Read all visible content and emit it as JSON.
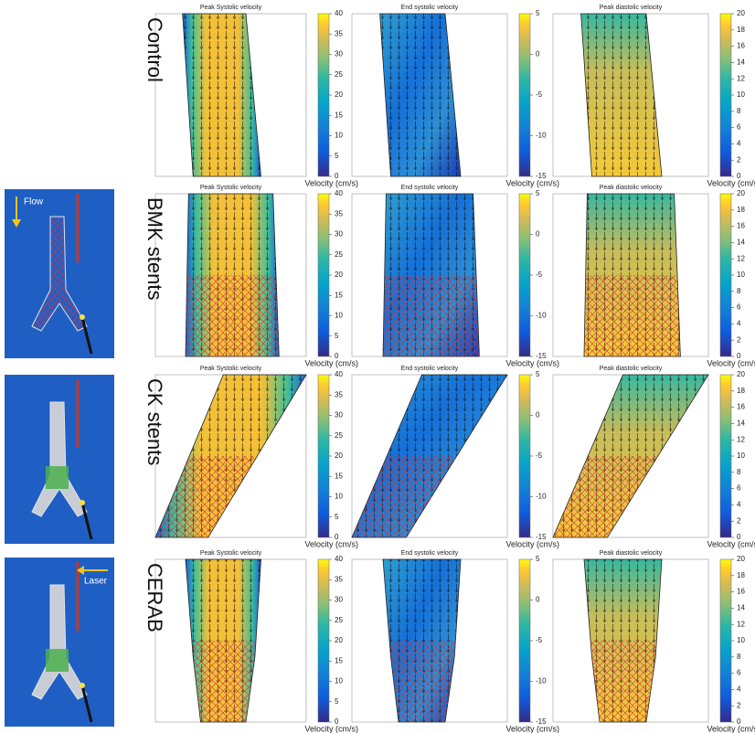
{
  "rows": [
    {
      "label": "Control",
      "photo": false,
      "panels": [
        {
          "title": "Peak Systolic velocity",
          "colorbar": {
            "lim": [
              0,
              40
            ],
            "ticks": [
              0,
              5,
              10,
              15,
              20,
              25,
              30,
              35,
              40
            ],
            "label": "Velocity (cm/s)"
          }
        },
        {
          "title": "End systolic velocity",
          "colorbar": {
            "lim": [
              -15,
              5
            ],
            "ticks": [
              -15,
              -10,
              -5,
              0,
              5
            ],
            "label": "Velocity (cm/s)"
          }
        },
        {
          "title": "Peak diastolic velocity",
          "colorbar": {
            "lim": [
              0,
              20
            ],
            "ticks": [
              0,
              2,
              4,
              6,
              8,
              10,
              12,
              14,
              16,
              18,
              20
            ],
            "label": "Velocity (cm/s)"
          }
        }
      ]
    },
    {
      "label": "BMK stents",
      "photo": true,
      "photo_label": "Flow",
      "panels": [
        {
          "title": "Peak Systolic velocity",
          "colorbar": {
            "lim": [
              0,
              40
            ],
            "ticks": [
              0,
              5,
              10,
              15,
              20,
              25,
              30,
              35,
              40
            ],
            "label": "Velocity (cm/s)"
          }
        },
        {
          "title": "End systolic velocity",
          "colorbar": {
            "lim": [
              -15,
              5
            ],
            "ticks": [
              -15,
              -10,
              -5,
              0,
              5
            ],
            "label": "Velocity (cm/s)"
          }
        },
        {
          "title": "Peak diastolic velocity",
          "colorbar": {
            "lim": [
              0,
              20
            ],
            "ticks": [
              0,
              2,
              4,
              6,
              8,
              10,
              12,
              14,
              16,
              18,
              20
            ],
            "label": "Velocity (cm/s)"
          }
        }
      ]
    },
    {
      "label": "CK stents",
      "photo": true,
      "panels": [
        {
          "title": "Peak Systolic velocity",
          "colorbar": {
            "lim": [
              0,
              40
            ],
            "ticks": [
              0,
              5,
              10,
              15,
              20,
              25,
              30,
              35,
              40
            ],
            "label": "Velocity (cm/s)"
          }
        },
        {
          "title": "End systolic velocity",
          "colorbar": {
            "lim": [
              -15,
              5
            ],
            "ticks": [
              -15,
              -10,
              -5,
              0,
              5
            ],
            "label": "Velocity (cm/s)"
          }
        },
        {
          "title": "Peak diastolic velocity",
          "colorbar": {
            "lim": [
              0,
              20
            ],
            "ticks": [
              0,
              2,
              4,
              6,
              8,
              10,
              12,
              14,
              16,
              18,
              20
            ],
            "label": "Velocity (cm/s)"
          }
        }
      ]
    },
    {
      "label": "CERAB",
      "photo": true,
      "photo_label": "Laser",
      "panels": [
        {
          "title": "Peak Systolic velocity",
          "colorbar": {
            "lim": [
              0,
              40
            ],
            "ticks": [
              0,
              5,
              10,
              15,
              20,
              25,
              30,
              35,
              40
            ],
            "label": "Velocity (cm/s)"
          }
        },
        {
          "title": "End systolic velocity",
          "colorbar": {
            "lim": [
              -15,
              5
            ],
            "ticks": [
              -15,
              -10,
              -5,
              0,
              5
            ],
            "label": "Velocity (cm/s)"
          }
        },
        {
          "title": "Peak diastolic velocity",
          "colorbar": {
            "lim": [
              0,
              20
            ],
            "ticks": [
              0,
              2,
              4,
              6,
              8,
              10,
              12,
              14,
              16,
              18,
              20
            ],
            "label": "Velocity (cm/s)"
          }
        }
      ]
    }
  ]
}
